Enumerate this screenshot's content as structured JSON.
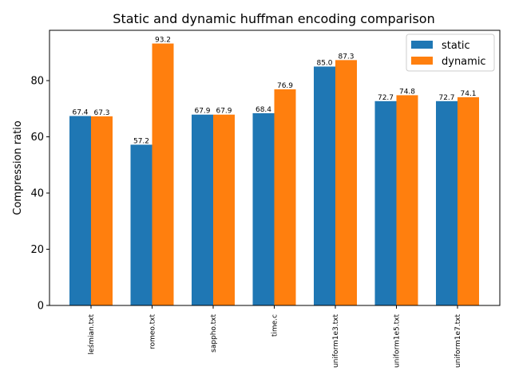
{
  "chart_data": {
    "type": "bar",
    "title": "Static and dynamic huffman encoding comparison",
    "xlabel": "",
    "ylabel": "Compression ratio",
    "ylim": [
      0,
      97.9
    ],
    "yticks": [
      "0",
      "20",
      "40",
      "60",
      "80"
    ],
    "categories": [
      "leśmian.txt",
      "romeo.txt",
      "sappho.txt",
      "time.c",
      "uniform1e3.txt",
      "uniform1e5.txt",
      "uniform1e7.txt"
    ],
    "series": [
      {
        "name": "static",
        "color": "#1f77b4",
        "values": [
          67.4,
          57.2,
          67.9,
          68.4,
          85.0,
          72.7,
          72.7
        ],
        "labels": [
          "67.4",
          "57.2",
          "67.9",
          "68.4",
          "85.0",
          "72.7",
          "72.7"
        ]
      },
      {
        "name": "dynamic",
        "color": "#ff7f0e",
        "values": [
          67.3,
          93.2,
          67.9,
          76.9,
          87.3,
          74.8,
          74.1
        ],
        "labels": [
          "67.3",
          "93.2",
          "67.9",
          "76.9",
          "87.3",
          "74.8",
          "74.1"
        ]
      }
    ],
    "legend_position": "top-right",
    "grid": false
  }
}
